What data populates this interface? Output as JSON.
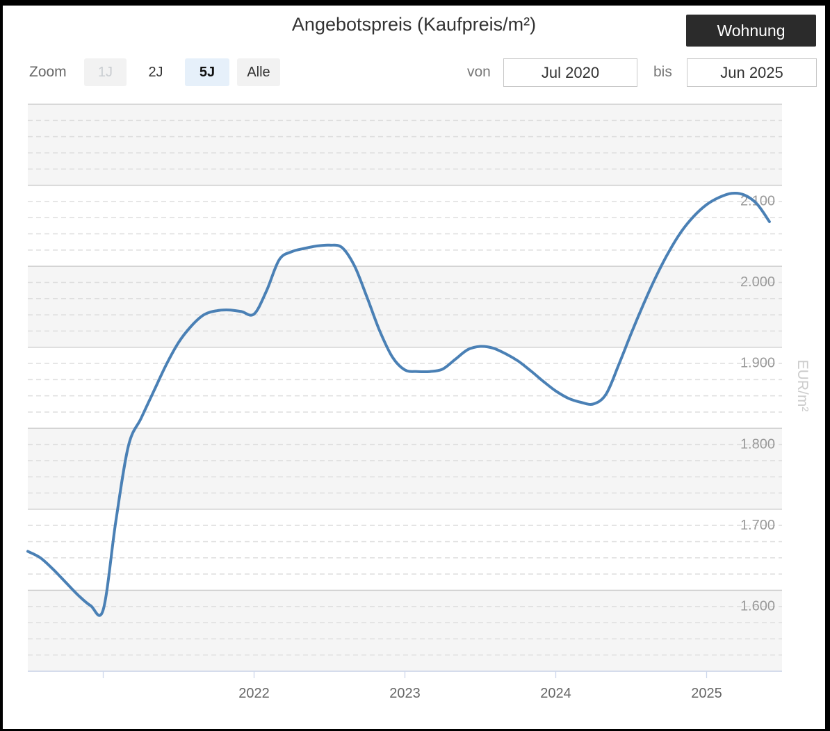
{
  "header": {
    "category_button": "Wohnung"
  },
  "toolbar": {
    "zoom_label": "Zoom",
    "buttons": [
      {
        "label": "1J",
        "state": "disabled",
        "bg": "#f2f2f2",
        "fg": "#c9cdd1",
        "bold": false
      },
      {
        "label": "2J",
        "state": "normal",
        "bg": "#ffffff",
        "fg": "#333333",
        "bold": false
      },
      {
        "label": "5J",
        "state": "selected",
        "bg": "#e6f0fa",
        "fg": "#111111",
        "bold": true
      },
      {
        "label": "Alle",
        "state": "normal",
        "bg": "#f2f2f2",
        "fg": "#333333",
        "bold": false
      }
    ],
    "from_label": "von",
    "from_value": "Jul 2020",
    "to_label": "bis",
    "to_value": "Jun 2025"
  },
  "colors": {
    "line": "#4a80b5",
    "band": "#f5f5f5",
    "major_grid": "#c8c8c8",
    "minor_grid": "#dedede",
    "axis_line": "#ccd6eb",
    "y_label": "#999999",
    "x_label": "#666666",
    "axis_title": "#cccccc",
    "title_text": "#333333"
  },
  "chart_data": {
    "type": "line",
    "title": "Angebotspreis (Kaufpreis/m²)",
    "unit": "EUR/m²",
    "legend": "none",
    "grid": "major solid + minor dashed + alternating bands",
    "months": [
      "2020-07",
      "2020-08",
      "2020-09",
      "2020-10",
      "2020-11",
      "2020-12",
      "2021-01",
      "2021-02",
      "2021-03",
      "2021-04",
      "2021-05",
      "2021-06",
      "2021-07",
      "2021-08",
      "2021-09",
      "2021-10",
      "2021-11",
      "2021-12",
      "2022-01",
      "2022-02",
      "2022-03",
      "2022-04",
      "2022-05",
      "2022-06",
      "2022-07",
      "2022-08",
      "2022-09",
      "2022-10",
      "2022-11",
      "2022-12",
      "2023-01",
      "2023-02",
      "2023-03",
      "2023-04",
      "2023-05",
      "2023-06",
      "2023-07",
      "2023-08",
      "2023-09",
      "2023-10",
      "2023-11",
      "2023-12",
      "2024-01",
      "2024-02",
      "2024-03",
      "2024-04",
      "2024-05",
      "2024-06",
      "2024-07",
      "2024-08",
      "2024-09",
      "2024-10",
      "2024-11",
      "2024-12",
      "2025-01",
      "2025-02",
      "2025-03",
      "2025-04",
      "2025-05",
      "2025-06"
    ],
    "values": [
      1648,
      1640,
      1626,
      1610,
      1594,
      1581,
      1576,
      1685,
      1778,
      1812,
      1845,
      1878,
      1906,
      1926,
      1940,
      1945,
      1946,
      1944,
      1941,
      1970,
      2008,
      2018,
      2022,
      2025,
      2026,
      2023,
      2000,
      1961,
      1920,
      1888,
      1872,
      1870,
      1870,
      1873,
      1885,
      1897,
      1901,
      1899,
      1892,
      1883,
      1871,
      1858,
      1846,
      1837,
      1832,
      1830,
      1842,
      1878,
      1917,
      1954,
      1988,
      2018,
      2043,
      2062,
      2076,
      2085,
      2090,
      2088,
      2077,
      2055
    ],
    "y_axis": {
      "min": 1500,
      "max": 2200,
      "tick_interval": 100,
      "minor_interval": 20,
      "title": "EUR/m²",
      "labels": [
        {
          "value": 2100,
          "text": "2.100"
        },
        {
          "value": 2000,
          "text": "2.000"
        },
        {
          "value": 1900,
          "text": "1.900"
        },
        {
          "value": 1800,
          "text": "1.800"
        },
        {
          "value": 1700,
          "text": "1.700"
        },
        {
          "value": 1600,
          "text": "1.600"
        }
      ]
    },
    "x_axis": {
      "ticks": [
        {
          "year": "2021",
          "label": ""
        },
        {
          "year": "2022",
          "label": "2022"
        },
        {
          "year": "2023",
          "label": "2023"
        },
        {
          "year": "2024",
          "label": "2024"
        },
        {
          "year": "2025",
          "label": "2025"
        }
      ]
    }
  }
}
